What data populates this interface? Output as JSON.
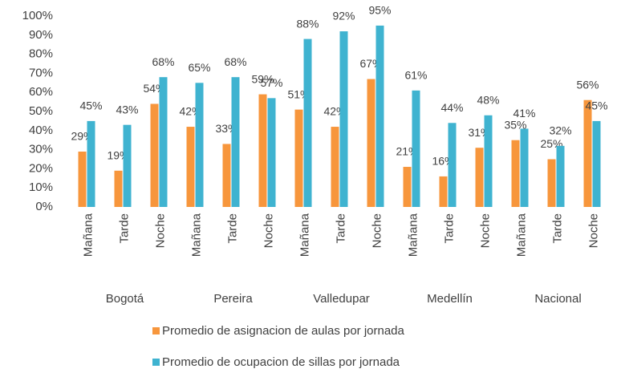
{
  "chart_data": {
    "type": "bar",
    "groups": [
      "Bogotá",
      "Pereira",
      "Valledupar",
      "Medellín",
      "Nacional"
    ],
    "categories": [
      "Mañana",
      "Tarde",
      "Noche",
      "Mañana",
      "Tarde",
      "Noche",
      "Mañana",
      "Tarde",
      "Noche",
      "Mañana",
      "Tarde",
      "Noche",
      "Mañana",
      "Tarde",
      "Noche"
    ],
    "series": [
      {
        "name": "Promedio de asignacion de aulas por jornada",
        "color": "#f7963c",
        "values": [
          29,
          19,
          54,
          42,
          33,
          59,
          51,
          42,
          67,
          21,
          16,
          31,
          35,
          25,
          56
        ],
        "value_labels": [
          "29%",
          "19%",
          "54%",
          "42%",
          "33%",
          "59%",
          "51%",
          "42%",
          "67%",
          "21%",
          "16%",
          "31%",
          "35%",
          "25%",
          "56%"
        ]
      },
      {
        "name": "Promedio de ocupacion de sillas por jornada",
        "color": "#3fb3d0",
        "values": [
          45,
          43,
          68,
          65,
          68,
          57,
          88,
          92,
          95,
          61,
          44,
          48,
          41,
          32,
          45
        ],
        "value_labels": [
          "45%",
          "43%",
          "68%",
          "65%",
          "68%",
          "57%",
          "88%",
          "92%",
          "95%",
          "61%",
          "44%",
          "48%",
          "41%",
          "32%",
          "45%"
        ]
      }
    ],
    "ylim": [
      0,
      100
    ],
    "yticks": [
      {
        "value": 0,
        "label": "0%"
      },
      {
        "value": 10,
        "label": "10%"
      },
      {
        "value": 20,
        "label": "20%"
      },
      {
        "value": 30,
        "label": "30%"
      },
      {
        "value": 40,
        "label": "40%"
      },
      {
        "value": 50,
        "label": "50%"
      },
      {
        "value": 60,
        "label": "60%"
      },
      {
        "value": 70,
        "label": "70%"
      },
      {
        "value": 80,
        "label": "80%"
      },
      {
        "value": 90,
        "label": "90%"
      },
      {
        "value": 100,
        "label": "100%"
      }
    ]
  }
}
